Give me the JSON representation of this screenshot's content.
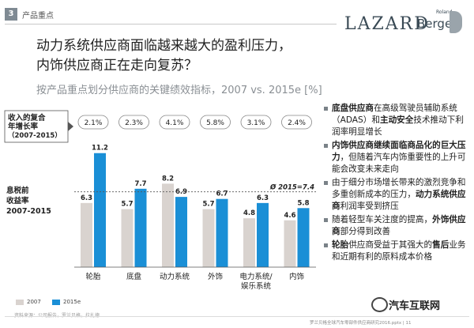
{
  "header": {
    "section_number": "3",
    "section_title": "产品重点",
    "logo_lazard": "LAZARD",
    "logo_roland": "Roland",
    "logo_berger": "Berger"
  },
  "headline": {
    "line1": "动力系统供应商面临越来越大的盈利压力，",
    "line2": "内饰供应商正在走向复苏？"
  },
  "subtitle": "按产品重点划分供应商的关键绩效指标，2007 vs. 2015e [%]",
  "labels": {
    "cagr": "收入的复合年增长率（2007-2015）",
    "ebit_l1": "息税前",
    "ebit_l2": "收益率",
    "ebit_l3": "2007-2015",
    "avg": "Ø 2015=7.4"
  },
  "chart_data": {
    "type": "bar",
    "categories": [
      "轮胎",
      "底盘",
      "动力系统",
      "外饰",
      "电力系统/娱乐系统",
      "内饰"
    ],
    "category_lines": [
      [
        "轮胎"
      ],
      [
        "底盘"
      ],
      [
        "动力系统"
      ],
      [
        "外饰"
      ],
      [
        "电力系统/",
        "娱乐系统"
      ],
      [
        "内饰"
      ]
    ],
    "cagr": [
      "2.1%",
      "2.3%",
      "4.1%",
      "5.8%",
      "3.1%",
      "2.4%"
    ],
    "series": [
      {
        "name": "2007",
        "values": [
          6.3,
          5.7,
          8.2,
          5.7,
          4.8,
          4.6
        ],
        "color": "#d9d3cf"
      },
      {
        "name": "2015e",
        "values": [
          11.2,
          7.7,
          6.9,
          6.7,
          6.3,
          5.8
        ],
        "color": "#1a8fd6"
      }
    ],
    "average_2015": 7.4,
    "ylim": [
      0,
      12.5
    ]
  },
  "bullets": [
    {
      "parts": [
        [
          "底盘供应商",
          true
        ],
        [
          "在高级驾驶员辅助系统（ADAS）和",
          false
        ],
        [
          "主动安全",
          true
        ],
        [
          "技术推动下利润率明显增长",
          false
        ]
      ]
    },
    {
      "parts": [
        [
          "内饰供应商继续面临商品化的巨大压力",
          true
        ],
        [
          "，但随着汽车内饰重要性的上升可能会改变未来走向",
          false
        ]
      ]
    },
    {
      "parts": [
        [
          "由于细分市场增长带来的激烈竞争和多重创新成本的压力，",
          false
        ],
        [
          "动力系统供应商",
          true
        ],
        [
          "利润率受到挤压",
          false
        ]
      ]
    },
    {
      "parts": [
        [
          "随着轻型车关注度的提高，",
          false
        ],
        [
          "外饰供应商",
          true
        ],
        [
          "部分得到改善",
          false
        ]
      ]
    },
    {
      "parts": [
        [
          "轮胎",
          true
        ],
        [
          "供应商受益于其强大的",
          false
        ],
        [
          "售后",
          true
        ],
        [
          "业务和近期有利的原料成本价格",
          false
        ]
      ]
    }
  ],
  "legend": {
    "s2007": "2007",
    "s2015": "2015e"
  },
  "source": "资料来源：公司报告，罗兰贝格，拉扎德",
  "footer": "罗兰贝格全球汽车零部件供应商研究2016.pptx | 11",
  "watermark": "汽车互联网"
}
